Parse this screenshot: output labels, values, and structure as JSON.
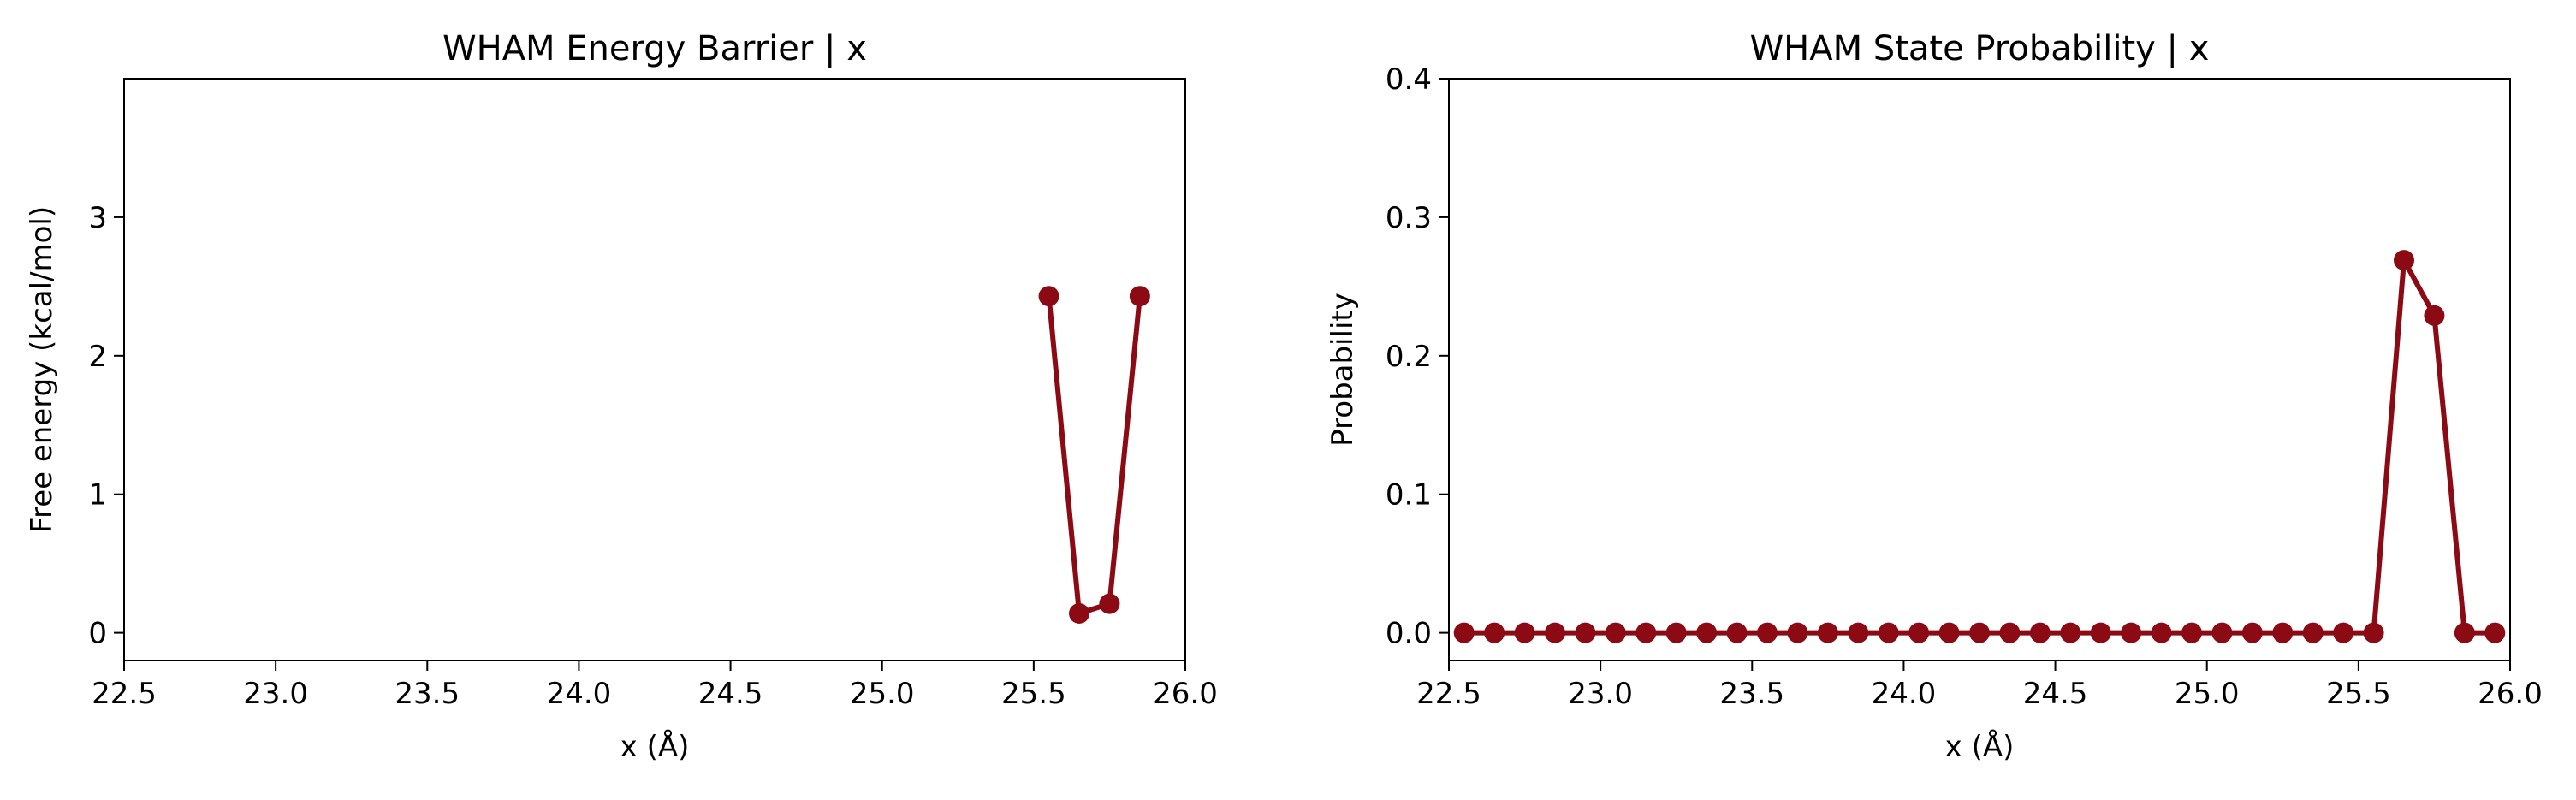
{
  "chart_data": [
    {
      "type": "line",
      "title": "WHAM Energy Barrier | x",
      "xlabel": "x (Å)",
      "ylabel": "Free energy (kcal/mol)",
      "xlim": [
        22.5,
        26.0
      ],
      "ylim": [
        -0.2,
        4.0
      ],
      "xticks": [
        "22.5",
        "23.0",
        "23.5",
        "24.0",
        "24.5",
        "25.0",
        "25.5",
        "26.0"
      ],
      "yticks": [
        "0",
        "1",
        "2",
        "3"
      ],
      "grid": false,
      "color": "#8b0a14",
      "series": [
        {
          "x": [
            25.55,
            25.65,
            25.75,
            25.85
          ],
          "y": [
            2.43,
            0.14,
            0.21,
            2.43
          ]
        }
      ]
    },
    {
      "type": "line",
      "title": "WHAM State Probability | x",
      "xlabel": "x (Å)",
      "ylabel": "Probability",
      "xlim": [
        22.5,
        26.0
      ],
      "ylim": [
        -0.02,
        0.4
      ],
      "xticks": [
        "22.5",
        "23.0",
        "23.5",
        "24.0",
        "24.5",
        "25.0",
        "25.5",
        "26.0"
      ],
      "yticks": [
        "0.0",
        "0.1",
        "0.2",
        "0.3",
        "0.4"
      ],
      "grid": false,
      "color": "#8b0a14",
      "series": [
        {
          "x": [
            22.55,
            22.65,
            22.75,
            22.85,
            22.95,
            23.05,
            23.15,
            23.25,
            23.35,
            23.45,
            23.55,
            23.65,
            23.75,
            23.85,
            23.95,
            24.05,
            24.15,
            24.25,
            24.35,
            24.45,
            24.55,
            24.65,
            24.75,
            24.85,
            24.95,
            25.05,
            25.15,
            25.25,
            25.35,
            25.45,
            25.55,
            25.65,
            25.75,
            25.85,
            25.95
          ],
          "y": [
            0,
            0,
            0,
            0,
            0,
            0,
            0,
            0,
            0,
            0,
            0,
            0,
            0,
            0,
            0,
            0,
            0,
            0,
            0,
            0,
            0,
            0,
            0,
            0,
            0,
            0,
            0,
            0,
            0,
            0,
            0,
            0.269,
            0.229,
            0,
            0
          ]
        }
      ]
    }
  ]
}
